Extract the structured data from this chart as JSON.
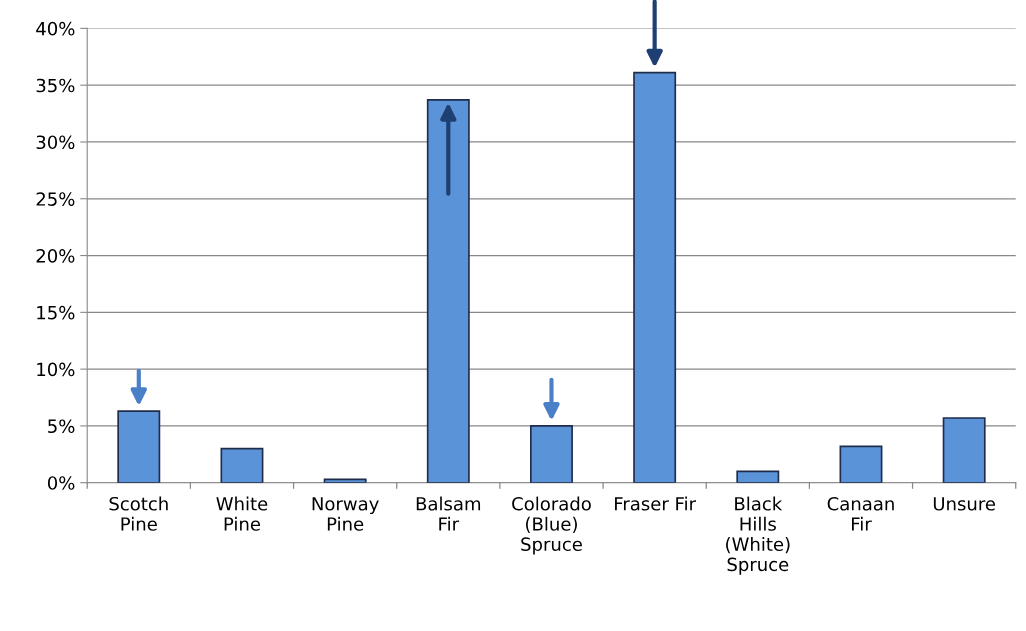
{
  "chart_data": {
    "type": "bar",
    "categories": [
      "Scotch\nPine",
      "White\nPine",
      "Norway\nPine",
      "Balsam\nFir",
      "Colorado\n(Blue)\nSpruce",
      "Fraser Fir",
      "Black\nHills\n(White)\nSpruce",
      "Canaan\nFir",
      "Unsure"
    ],
    "values": [
      6.3,
      3.0,
      0.3,
      33.7,
      5.0,
      36.1,
      1.0,
      3.2,
      5.7
    ],
    "color": "#5b93d9",
    "ylim": [
      0,
      40
    ],
    "yticks": [
      {
        "value": 0,
        "label": "0%"
      },
      {
        "value": 5,
        "label": "5%"
      },
      {
        "value": 10,
        "label": "10%"
      },
      {
        "value": 15,
        "label": "15%"
      },
      {
        "value": 20,
        "label": "20%"
      },
      {
        "value": 25,
        "label": "25%"
      },
      {
        "value": 30,
        "label": "30%"
      },
      {
        "value": 35,
        "label": "35%"
      },
      {
        "value": 40,
        "label": "40%"
      }
    ],
    "grid": "y"
  }
}
